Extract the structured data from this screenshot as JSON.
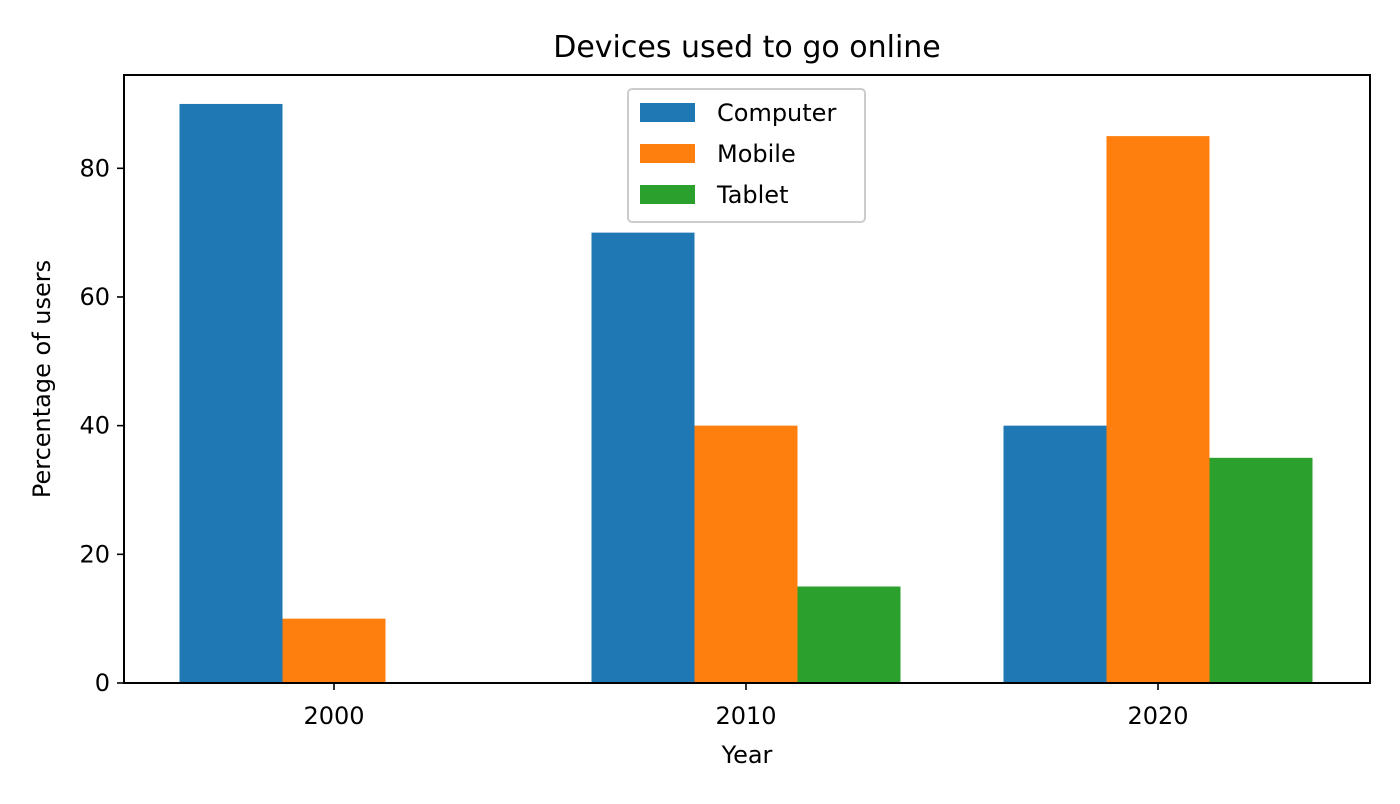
{
  "chart_data": {
    "type": "bar",
    "title": "Devices used to go online",
    "xlabel": "Year",
    "ylabel": "Percentage of users",
    "categories": [
      "2000",
      "2010",
      "2020"
    ],
    "series": [
      {
        "name": "Computer",
        "values": [
          90,
          70,
          40
        ],
        "color": "#1f77b4"
      },
      {
        "name": "Mobile",
        "values": [
          10,
          40,
          85
        ],
        "color": "#ff7f0e"
      },
      {
        "name": "Tablet",
        "values": [
          0,
          15,
          35
        ],
        "color": "#2ca02c"
      }
    ],
    "ylim": [
      0,
      94.5
    ],
    "yticks": [
      0,
      20,
      40,
      60,
      80
    ],
    "grid": false,
    "legend_position": "upper-center"
  }
}
